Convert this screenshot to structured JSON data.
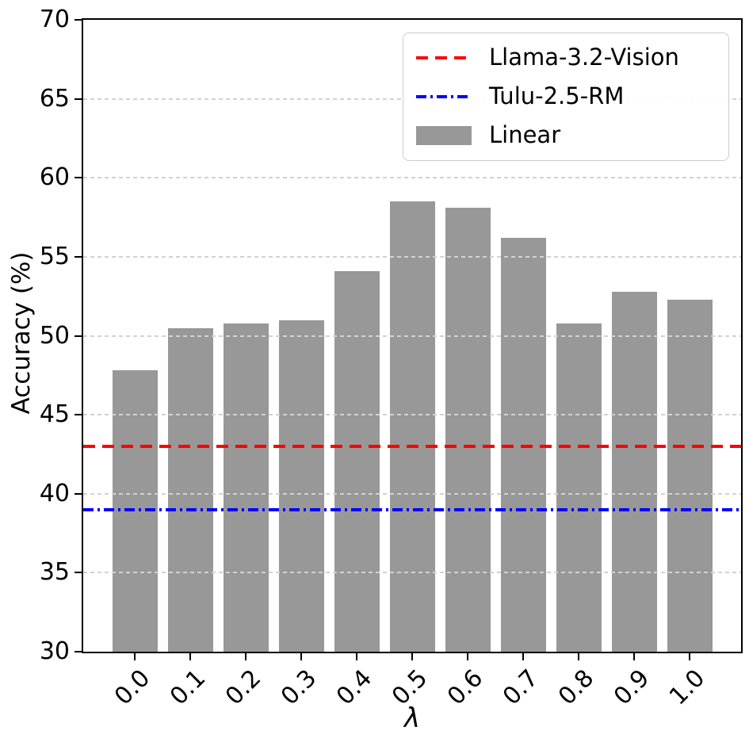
{
  "chart_data": {
    "type": "bar",
    "title": "",
    "xlabel": "λ",
    "ylabel": "Accuracy (%)",
    "categories": [
      "0.0",
      "0.1",
      "0.2",
      "0.3",
      "0.4",
      "0.5",
      "0.6",
      "0.7",
      "0.8",
      "0.9",
      "1.0"
    ],
    "series": [
      {
        "name": "Llama-3.2-Vision",
        "type": "hline",
        "style": "dashed",
        "color": "#ff0000",
        "value": 43.0
      },
      {
        "name": "Tulu-2.5-RM",
        "type": "hline",
        "style": "dashdot",
        "color": "#0000ff",
        "value": 39.0
      },
      {
        "name": "Linear",
        "type": "bar",
        "color": "#989898",
        "values": [
          47.8,
          50.5,
          50.8,
          51.0,
          54.1,
          58.5,
          58.1,
          56.2,
          50.8,
          52.8,
          52.3
        ]
      }
    ],
    "ylim": [
      30,
      70
    ],
    "yticks": [
      30,
      35,
      40,
      45,
      50,
      55,
      60,
      65,
      70
    ],
    "grid": true,
    "grid_axis": "y",
    "legend_position": "upper right",
    "legend_order": [
      "Llama-3.2-Vision",
      "Tulu-2.5-RM",
      "Linear"
    ]
  }
}
